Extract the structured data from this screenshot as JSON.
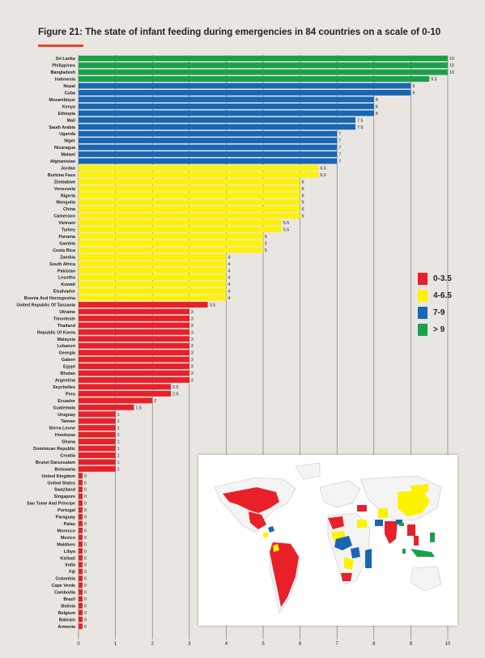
{
  "title": "Figure 21: The state of infant feeding during emergencies  in 84 countries on a scale of 0-10",
  "colors": {
    "red": "#e8202a",
    "yellow": "#fff200",
    "blue": "#1866b4",
    "green": "#1aa04b",
    "title_rule": "#e8412f"
  },
  "legend": [
    {
      "label": "0-3.5",
      "color": "#e8202a"
    },
    {
      "label": "4-6.5",
      "color": "#fff200"
    },
    {
      "label": "7-9",
      "color": "#1866b4"
    },
    {
      "label": "> 9",
      "color": "#1aa04b"
    }
  ],
  "chart_data": {
    "type": "bar",
    "orientation": "horizontal",
    "title": "Figure 21: The state of infant feeding during emergencies  in 84 countries on a scale of 0-10",
    "xlim": [
      0,
      10
    ],
    "x_ticks": [
      0,
      1,
      2,
      3,
      4,
      5,
      6,
      7,
      8,
      9,
      10
    ],
    "grid": true,
    "legend_position": "right",
    "categories": [
      "Sri Lanka",
      "Philippines",
      "Bangladesh",
      "Indonesia",
      "Nepal",
      "Cuba",
      "Mozambique",
      "Kenya",
      "Ethiopia",
      "Mali",
      "Saudi Arabia",
      "Uganda",
      "Niger",
      "Nicaragua",
      "Malawi",
      "Afghanistan",
      "Jordan",
      "Burkina Faso",
      "Zimbabwe",
      "Venezuela",
      "Nigeria",
      "Mongolia",
      "China",
      "Cameroon",
      "Vietnam",
      "Turkey",
      "Panama",
      "Gambia",
      "Costa Rica",
      "Zambia",
      "South Africa",
      "Pakistan",
      "Lesotho",
      "Kuwait",
      "Elsalvador",
      "Bosnia And Herzegovina",
      "United Republic Of Tanzania",
      "Ukraine",
      "Timorleste",
      "Thailand",
      "Republic Of Korea",
      "Malaysia",
      "Lebanon",
      "Georgia",
      "Gabon",
      "Egypt",
      "Bhutan",
      "Argentina",
      "Seychelles",
      "Peru",
      "Ecuador",
      "Guatemala",
      "Uruguay",
      "Taiwan",
      "Sierra Leone",
      "Honduras",
      "Ghana",
      "Dominican Republic",
      "Croatia",
      "Brunei Darussalam",
      "Botswana",
      "United Kingdom",
      "United States",
      "Swaziland",
      "Singapore",
      "Sao Tome And Principe",
      "Portugal",
      "Paraguay",
      "Palau",
      "Morocco",
      "Mexico",
      "Maldives",
      "Libya",
      "Kiribati",
      "India",
      "Fiji",
      "Colombia",
      "Cape Verde",
      "Cambodia",
      "Brazil",
      "Bolivia",
      "Belgium",
      "Bahrain",
      "Armenia"
    ],
    "values": [
      10,
      10,
      10,
      9.5,
      9,
      9,
      8,
      8,
      8,
      7.5,
      7.5,
      7,
      7,
      7,
      7,
      7,
      6.5,
      6.5,
      6,
      6,
      6,
      6,
      6,
      6,
      5.5,
      5.5,
      5,
      5,
      5,
      4,
      4,
      4,
      4,
      4,
      4,
      4,
      3.5,
      3,
      3,
      3,
      3,
      3,
      3,
      3,
      3,
      3,
      3,
      3,
      2.5,
      2.5,
      2,
      1.5,
      1,
      1,
      1,
      1,
      1,
      1,
      1,
      1,
      1,
      0,
      0,
      0,
      0,
      0,
      0,
      0,
      0,
      0,
      0,
      0,
      0,
      0,
      0,
      0,
      0,
      0,
      0,
      0,
      0,
      0,
      0,
      0
    ],
    "value_labels": [
      "10",
      "10",
      "10",
      "9.5",
      "9",
      "9",
      "8",
      "8",
      "8",
      "7.5",
      "7.5",
      "7",
      "7",
      "7",
      "7",
      "7",
      "6.5",
      "6.5",
      "6",
      "6",
      "6",
      "6",
      "6",
      "6",
      "5.5",
      "5.5",
      "5",
      "5",
      "5",
      "4",
      "4",
      "4",
      "4",
      "4",
      "4",
      "4",
      "3.5",
      "3",
      "3",
      "3",
      "3",
      "3",
      "3",
      "3",
      "3",
      "3",
      "3",
      "3",
      "2.5",
      "2.5",
      "2",
      "1.5",
      "1",
      "1",
      "1",
      "1",
      "1",
      "1",
      "1",
      "1",
      "1",
      "0",
      "0",
      "0",
      "0",
      "0",
      "0",
      "0",
      "0",
      "0",
      "0",
      "0",
      "0",
      "0",
      "0",
      "0",
      "0",
      "0",
      "0",
      "0",
      "0",
      "0",
      "0",
      "0"
    ]
  }
}
